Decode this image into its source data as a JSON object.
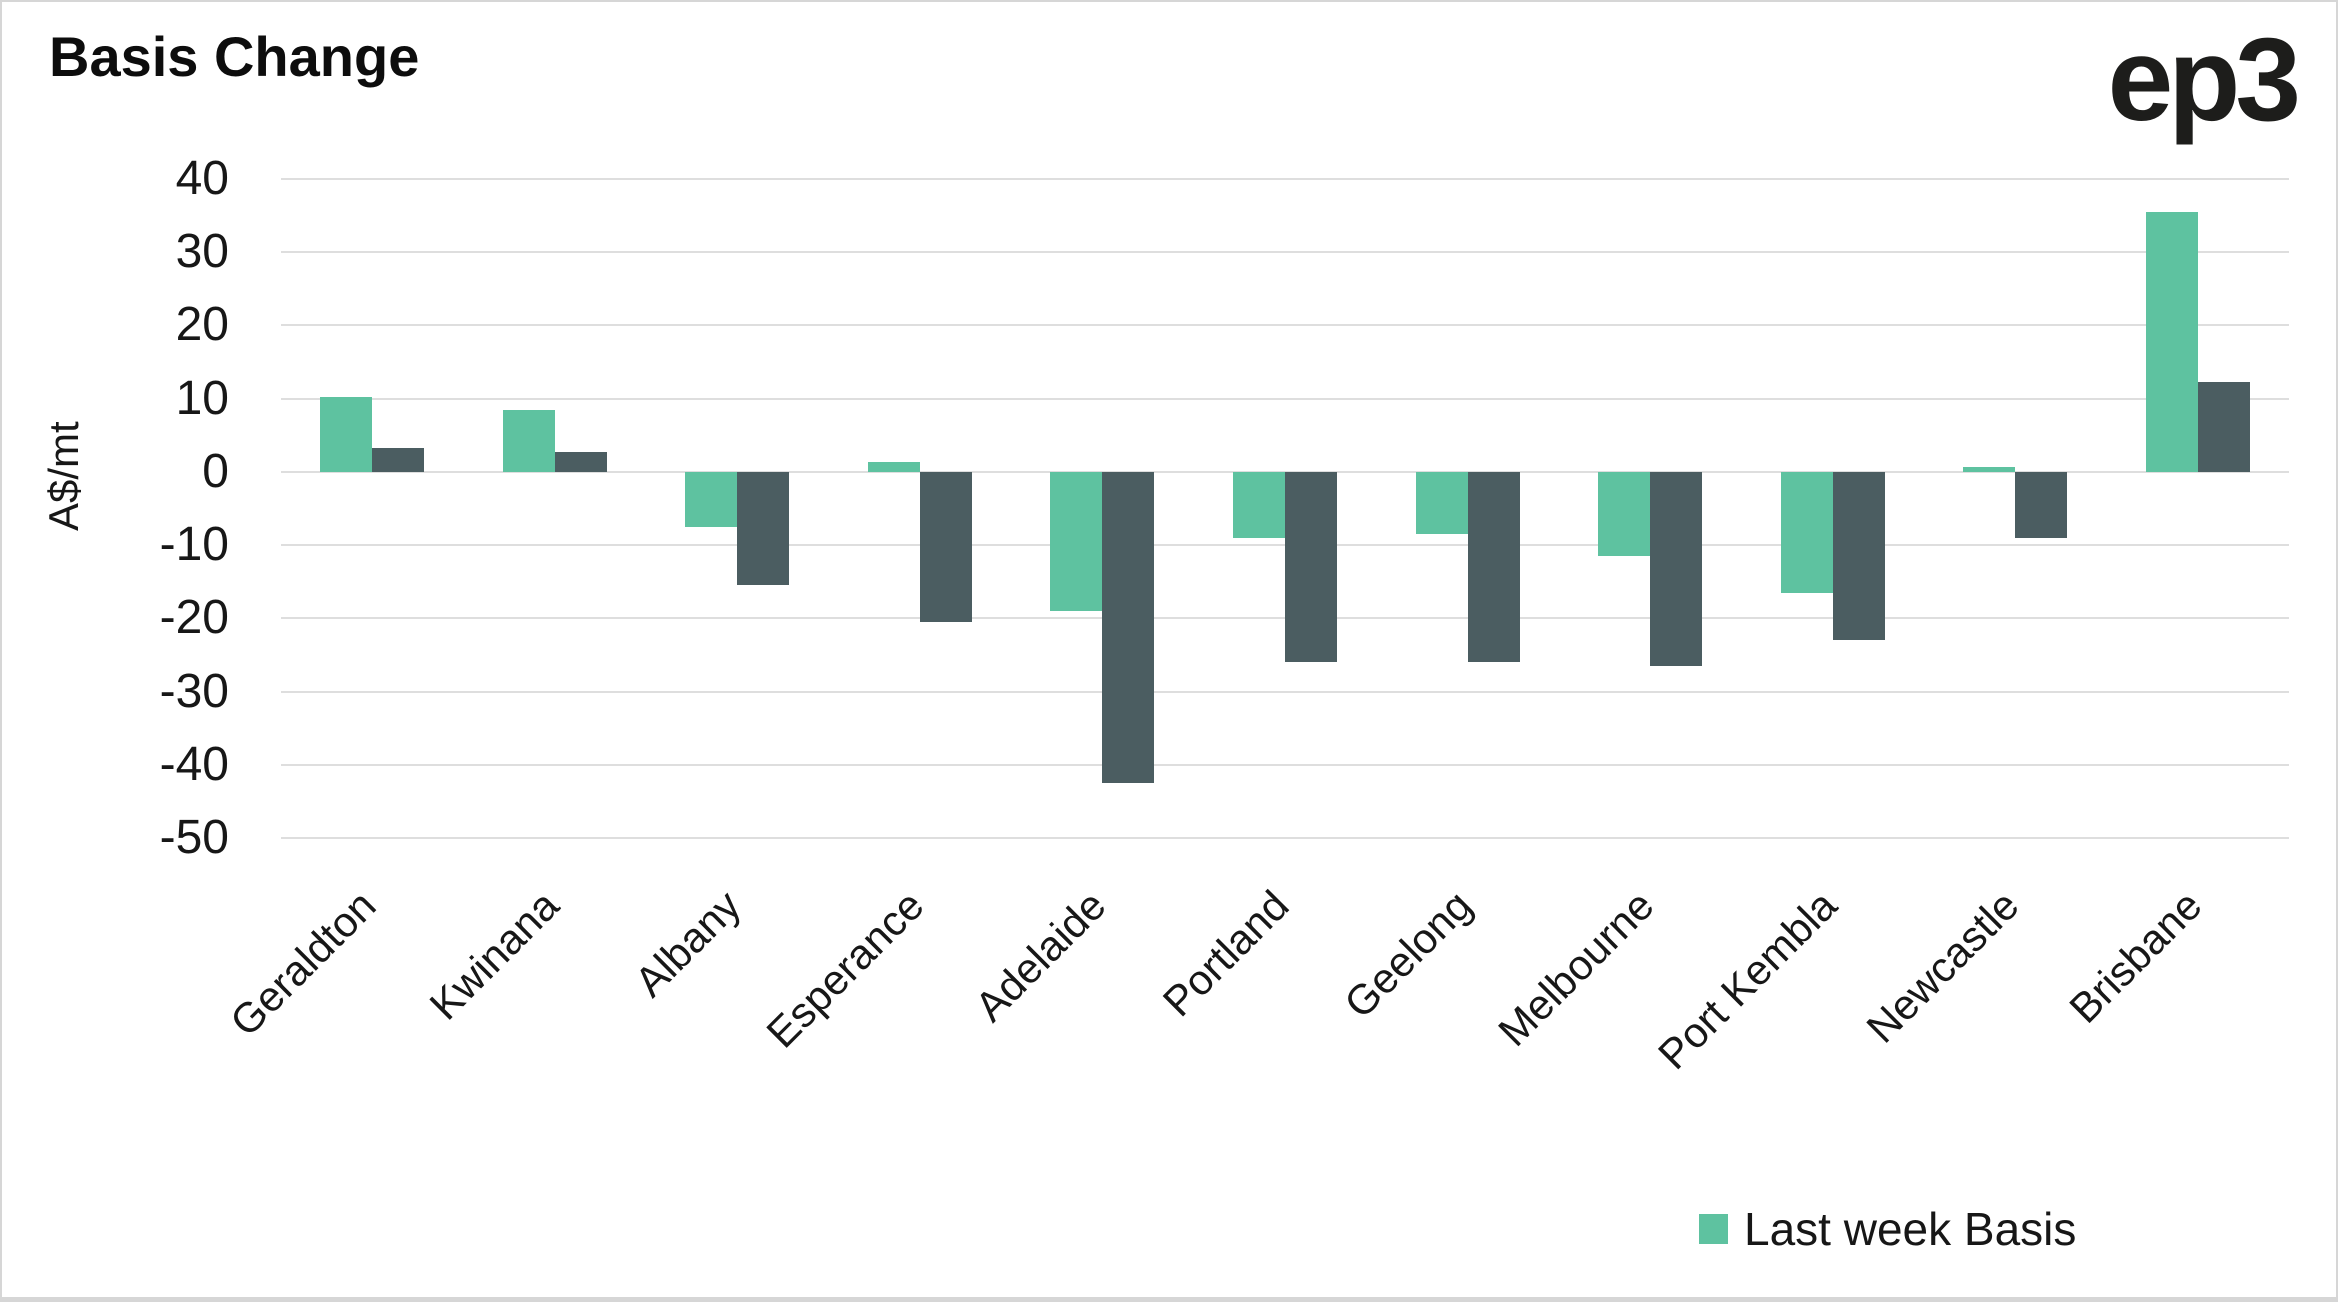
{
  "header": {
    "title": "Basis Change",
    "logo_text": "ep3"
  },
  "colors": {
    "last_week_series": "#5ec2a0",
    "current_series": "#4b5d61",
    "gridline": "#dedede",
    "text": "#171717",
    "frame_border": "#d6d6d6",
    "background": "#ffffff"
  },
  "legend": {
    "items": [
      {
        "label": "Last week Basis",
        "swatch_color": "#5ec2a0"
      }
    ]
  },
  "chart_data": {
    "type": "bar",
    "title": "Basis Change",
    "xlabel": "",
    "ylabel": "A$/mt",
    "ylim": [
      -50,
      40
    ],
    "ytick_step": 10,
    "yticks": [
      "40",
      "30",
      "20",
      "10",
      "0",
      "-10",
      "-20",
      "-30",
      "-40",
      "-50"
    ],
    "grid": "horizontal",
    "legend_position": "bottom-right",
    "categories": [
      "Geraldton",
      "Kwinana",
      "Albany",
      "Esperance",
      "Adelaide",
      "Portland",
      "Geelong",
      "Melbourne",
      "Port Kembla",
      "Newcastle",
      "Brisbane"
    ],
    "series": [
      {
        "name": "Last week Basis",
        "color": "#5ec2a0",
        "in_legend": true,
        "values": [
          10.2,
          8.5,
          -7.5,
          1.4,
          -19,
          -9,
          -8.5,
          -11.5,
          -16.5,
          0.7,
          35.5
        ]
      },
      {
        "name": "",
        "color": "#4b5d61",
        "in_legend": false,
        "values": [
          3.2,
          2.7,
          -15.5,
          -20.5,
          -42.5,
          -26,
          -26,
          -26.5,
          -23,
          -9,
          12.3
        ]
      }
    ]
  }
}
